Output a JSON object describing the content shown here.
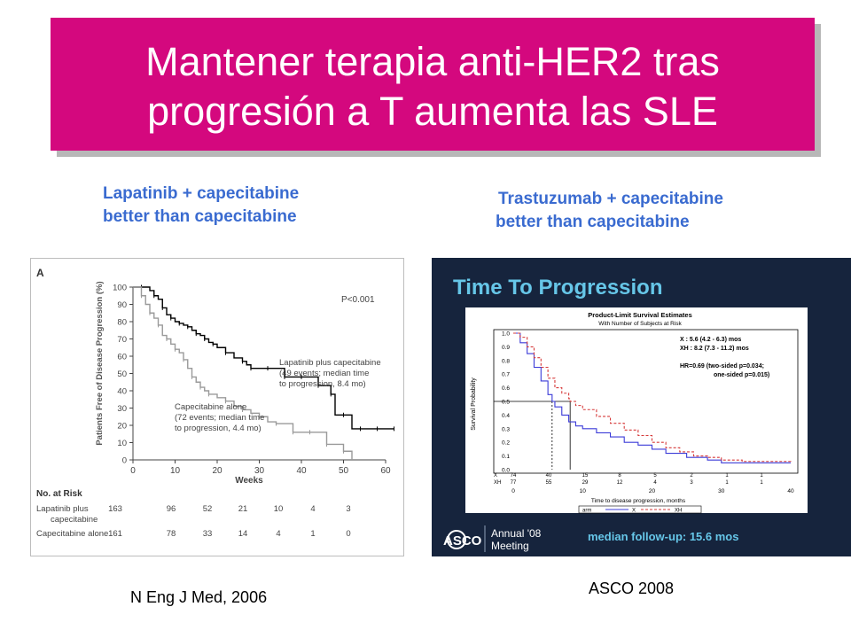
{
  "slide": {
    "title_line1": "Mantener terapia anti-HER2 tras",
    "title_line2": "progresión a T aumenta las SLE",
    "left_subtitle_1": "Lapatinib + capecitabine",
    "left_subtitle_2": "better than capecitabine",
    "right_subtitle_1": "Trastuzumab + capecitabine",
    "right_subtitle_2": "better than capecitabine",
    "left_citation": "N Eng J Med, 2006",
    "right_citation": "ASCO 2008",
    "colors": {
      "title_bg": "#d4087e",
      "subtitle": "#3a6bd0",
      "right_panel_bg": "#16243d"
    }
  },
  "chart_data": [
    {
      "type": "line",
      "panel_label": "A",
      "ylabel": "Patients Free of Disease Progression (%)",
      "xlabel": "Weeks",
      "xlim": [
        0,
        60
      ],
      "ylim": [
        0,
        100
      ],
      "x_ticks": [
        "0",
        "10",
        "20",
        "30",
        "40",
        "50",
        "60"
      ],
      "y_ticks": [
        "0",
        "10",
        "20",
        "30",
        "40",
        "50",
        "60",
        "70",
        "80",
        "90",
        "100"
      ],
      "p_value": "P<0.001",
      "series": [
        {
          "name": "Lapatinib plus capecitabine",
          "annotation": [
            "Lapatinib plus capecitabine",
            "(49 events; median time",
            "to progression, 8.4 mo)"
          ],
          "color": "#000000",
          "x": [
            0,
            2,
            4,
            5,
            6,
            7,
            8,
            9,
            10,
            11,
            12,
            13,
            14,
            15,
            16,
            17,
            18,
            19,
            20,
            22,
            24,
            26,
            27,
            28,
            30,
            32,
            34,
            36,
            38,
            40,
            42,
            44,
            46,
            47,
            48,
            50,
            52,
            54,
            56,
            58,
            60,
            62
          ],
          "y": [
            100,
            100,
            98,
            95,
            93,
            88,
            84,
            82,
            80,
            79,
            78,
            77,
            75,
            73,
            72,
            70,
            68,
            67,
            65,
            62,
            59,
            57,
            55,
            53,
            53,
            53,
            53,
            48,
            48,
            48,
            48,
            43,
            43,
            38,
            26,
            26,
            18,
            18,
            18,
            18,
            18,
            18
          ]
        },
        {
          "name": "Capecitabine alone",
          "annotation": [
            "Capecitabine alone",
            "(72 events; median time",
            "to progression, 4.4 mo)"
          ],
          "color": "#9a9a9a",
          "x": [
            0,
            2,
            3,
            4,
            5,
            6,
            7,
            8,
            9,
            10,
            11,
            12,
            13,
            14,
            15,
            16,
            17,
            18,
            20,
            22,
            24,
            26,
            28,
            30,
            32,
            34,
            36,
            38,
            40,
            42,
            44,
            46,
            48,
            50,
            52
          ],
          "y": [
            100,
            95,
            90,
            85,
            82,
            78,
            72,
            70,
            67,
            64,
            62,
            58,
            53,
            48,
            45,
            42,
            40,
            38,
            36,
            34,
            31,
            29,
            27,
            25,
            22,
            21,
            21,
            16,
            16,
            16,
            16,
            9,
            9,
            5,
            0
          ]
        }
      ],
      "at_risk": {
        "title": "No. at Risk",
        "rows": [
          {
            "label_1": "Lapatinib plus",
            "label_2": "capecitabine",
            "values": [
              "163",
              "96",
              "52",
              "21",
              "10",
              "4",
              "3"
            ]
          },
          {
            "label_1": "Capecitabine alone",
            "values": [
              "161",
              "78",
              "33",
              "14",
              "4",
              "1",
              "0"
            ]
          }
        ]
      }
    },
    {
      "type": "line",
      "header": "Time To Progression",
      "title": "Product-Limit Survival Estimates",
      "subtitle": "With Number of Subjects at Risk",
      "ylabel": "Survival Probability",
      "xlabel": "Time to disease progression, months",
      "xlim": [
        0,
        40
      ],
      "ylim": [
        0,
        1
      ],
      "x_ticks": [
        "0",
        "10",
        "20",
        "30",
        "40"
      ],
      "y_ticks": [
        "0.0",
        "0.1",
        "0.2",
        "0.3",
        "0.4",
        "0.5",
        "0.6",
        "0.7",
        "0.8",
        "0.9",
        "1.0"
      ],
      "stats": [
        "X : 5.6 (4.2 - 6.3) mos",
        "XH : 8.2 (7.3 - 11.2) mos",
        "HR=0.69 (two-sided p=0.034;",
        "one-sided p=0.015)"
      ],
      "legend": {
        "label": "arm",
        "items": [
          "X",
          "XH"
        ]
      },
      "series": [
        {
          "name": "X",
          "color": "#3b3bd8",
          "x": [
            0,
            1,
            2,
            3,
            4,
            5,
            5.6,
            6,
            7,
            8,
            9,
            10,
            12,
            14,
            16,
            18,
            20,
            22,
            25,
            28,
            30,
            33,
            36,
            40
          ],
          "y": [
            1.0,
            0.93,
            0.85,
            0.75,
            0.65,
            0.55,
            0.5,
            0.46,
            0.4,
            0.35,
            0.32,
            0.3,
            0.27,
            0.24,
            0.2,
            0.18,
            0.15,
            0.12,
            0.09,
            0.07,
            0.05,
            0.05,
            0.05,
            0.05
          ]
        },
        {
          "name": "XH",
          "color": "#d63a3a",
          "x": [
            0,
            1,
            2,
            3,
            4,
            5,
            6,
            7,
            8,
            8.2,
            9,
            10,
            12,
            14,
            16,
            18,
            20,
            22,
            24,
            26,
            28,
            30,
            33,
            36,
            40
          ],
          "y": [
            1.0,
            0.97,
            0.9,
            0.82,
            0.75,
            0.67,
            0.6,
            0.56,
            0.52,
            0.5,
            0.47,
            0.44,
            0.39,
            0.34,
            0.29,
            0.25,
            0.2,
            0.16,
            0.13,
            0.1,
            0.09,
            0.07,
            0.06,
            0.06,
            0.05
          ]
        }
      ],
      "at_risk": {
        "rows": [
          {
            "label": "X",
            "values": [
              "74",
              "40",
              "15",
              "8",
              "5",
              "2",
              "1",
              "1"
            ]
          },
          {
            "label": "XH",
            "values": [
              "77",
              "55",
              "29",
              "12",
              "4",
              "3",
              "1",
              "1"
            ]
          }
        ]
      },
      "footer": {
        "logo_text": "ASCO",
        "meeting_line1": "Annual '08",
        "meeting_line2": "Meeting",
        "followup": "median follow-up: 15.6 mos"
      }
    }
  ]
}
